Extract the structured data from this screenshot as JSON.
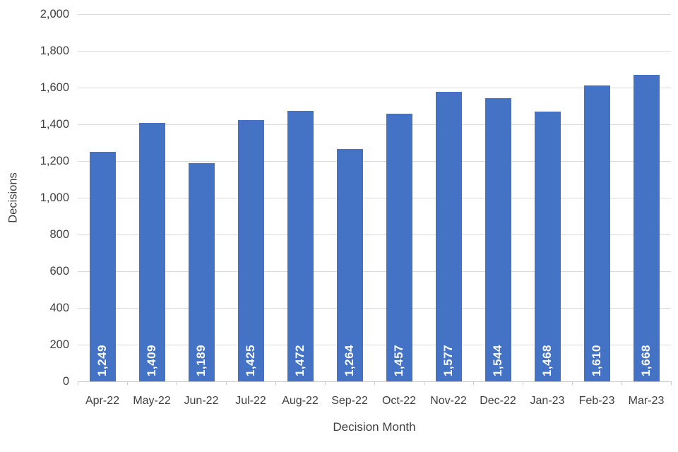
{
  "chart_data": {
    "type": "bar",
    "title": "",
    "xlabel": "Decision Month",
    "ylabel": "Decisions",
    "categories": [
      "Apr-22",
      "May-22",
      "Jun-22",
      "Jul-22",
      "Aug-22",
      "Sep-22",
      "Oct-22",
      "Nov-22",
      "Dec-22",
      "Jan-23",
      "Feb-23",
      "Mar-23"
    ],
    "values": [
      1249,
      1409,
      1189,
      1425,
      1472,
      1264,
      1457,
      1577,
      1544,
      1468,
      1610,
      1668
    ],
    "value_labels": [
      "1,249",
      "1,409",
      "1,189",
      "1,425",
      "1,472",
      "1,264",
      "1,457",
      "1,577",
      "1,544",
      "1,468",
      "1,610",
      "1,668"
    ],
    "y_ticks": [
      0,
      200,
      400,
      600,
      800,
      1000,
      1200,
      1400,
      1600,
      1800,
      2000
    ],
    "y_tick_labels": [
      "0",
      "200",
      "400",
      "600",
      "800",
      "1,000",
      "1,200",
      "1,400",
      "1,600",
      "1,800",
      "2,000"
    ],
    "ylim": [
      0,
      2000
    ],
    "grid": true,
    "legend": "none",
    "bar_color": "#4472C4",
    "bar_label_color": "#FFFFFF",
    "axis_text_color": "#404040",
    "gridline_color": "#D9D9D9",
    "axis_line_color": "#C9C9C9"
  }
}
